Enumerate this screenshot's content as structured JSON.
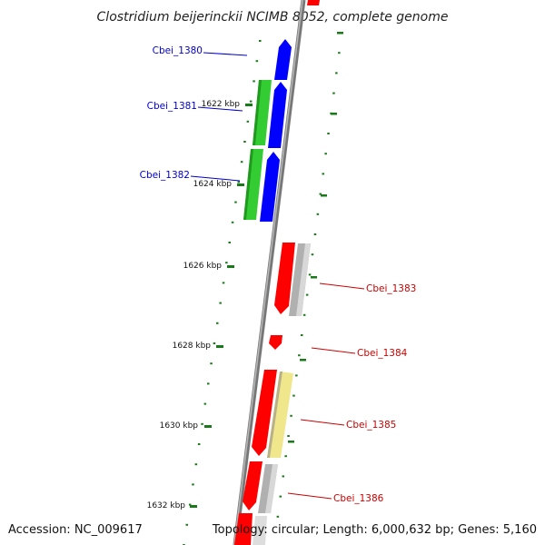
{
  "title": "Clostridium beijerinckii NCIMB 8052, complete genome",
  "footer": {
    "accession": "Accession: NC_009617",
    "summary": "Topology: circular; Length: 6,000,632 bp; Genes: 5,160"
  },
  "colors": {
    "forward_cds": "#0000ff",
    "reverse_cds": "#ff0000",
    "green_feature": "#33cc33",
    "gray_feature": "#b0b0b0",
    "yellow_feature": "#f0e68c",
    "backbone": "#888888",
    "tick": "#1a7a1a",
    "forward_label": "#0000cc",
    "reverse_label": "#cc0000"
  },
  "ticks": [
    {
      "label": "1622 kbp"
    },
    {
      "label": "1624 kbp"
    },
    {
      "label": "1626 kbp"
    },
    {
      "label": "1628 kbp"
    },
    {
      "label": "1630 kbp"
    },
    {
      "label": "1632 kbp"
    }
  ],
  "genes_forward": [
    {
      "label": "Cbei_1380"
    },
    {
      "label": "Cbei_1381"
    },
    {
      "label": "Cbei_1382"
    }
  ],
  "genes_reverse": [
    {
      "label": "Cbei_1383"
    },
    {
      "label": "Cbei_1384"
    },
    {
      "label": "Cbei_1385"
    },
    {
      "label": "Cbei_1386"
    }
  ]
}
